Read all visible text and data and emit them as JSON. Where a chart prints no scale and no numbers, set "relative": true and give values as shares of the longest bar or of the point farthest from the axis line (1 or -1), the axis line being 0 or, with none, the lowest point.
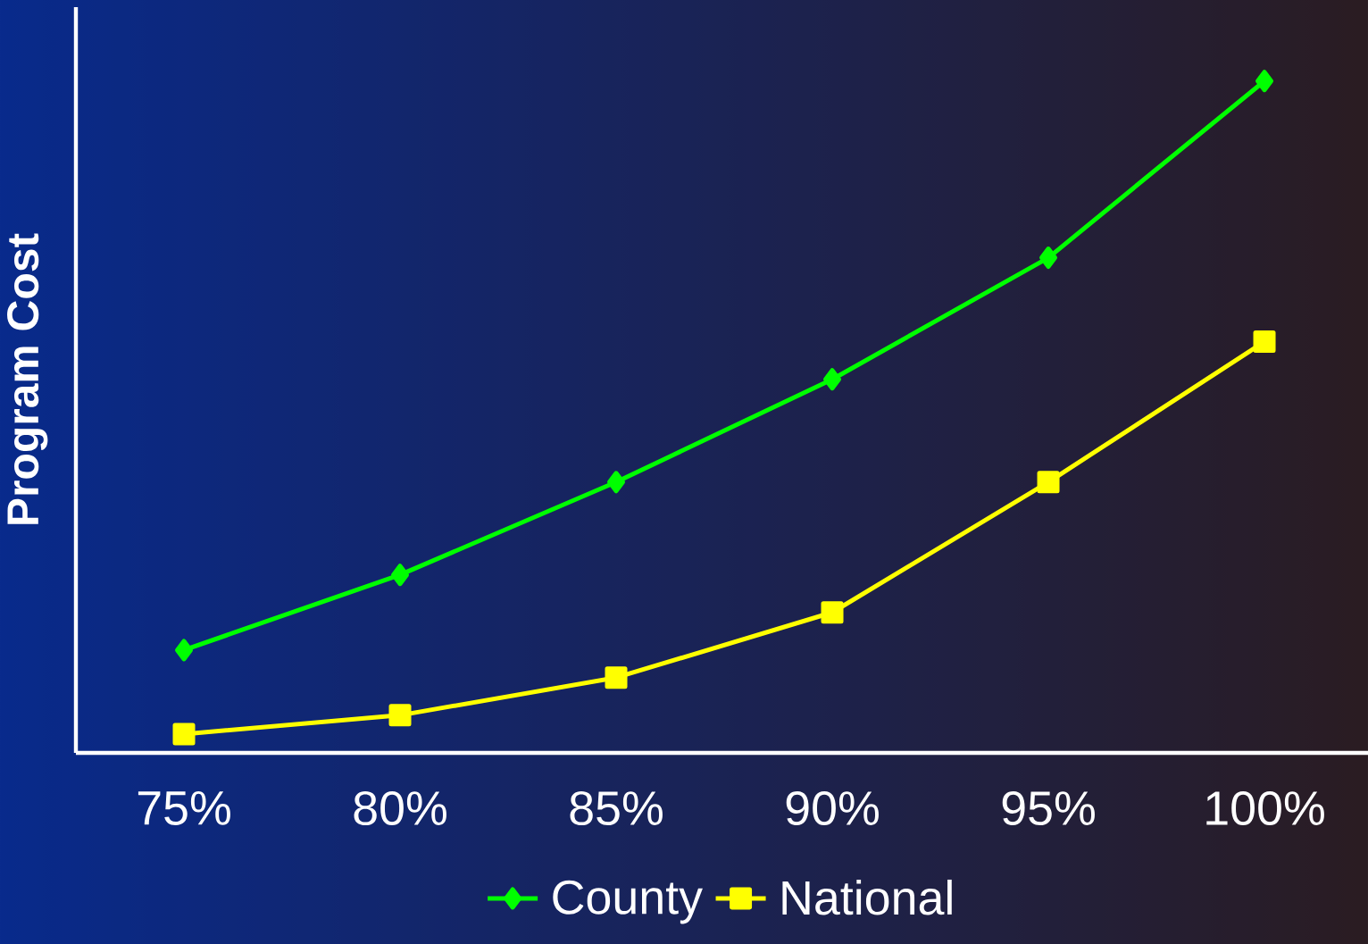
{
  "chart_data": {
    "type": "line",
    "ylabel": "Program Cost",
    "relative": true,
    "categories": [
      "75%",
      "80%",
      "85%",
      "90%",
      "95%",
      "100%"
    ],
    "legend": "bottom",
    "grid": false,
    "series": [
      {
        "name": "County",
        "color": "#00ff00",
        "marker": "diamond",
        "values": [
          0.153,
          0.265,
          0.403,
          0.556,
          0.737,
          1
        ]
      },
      {
        "name": "National",
        "color": "#ffff00",
        "marker": "square",
        "values": [
          0.028,
          0.056,
          0.112,
          0.209,
          0.403,
          0.612
        ]
      }
    ]
  }
}
